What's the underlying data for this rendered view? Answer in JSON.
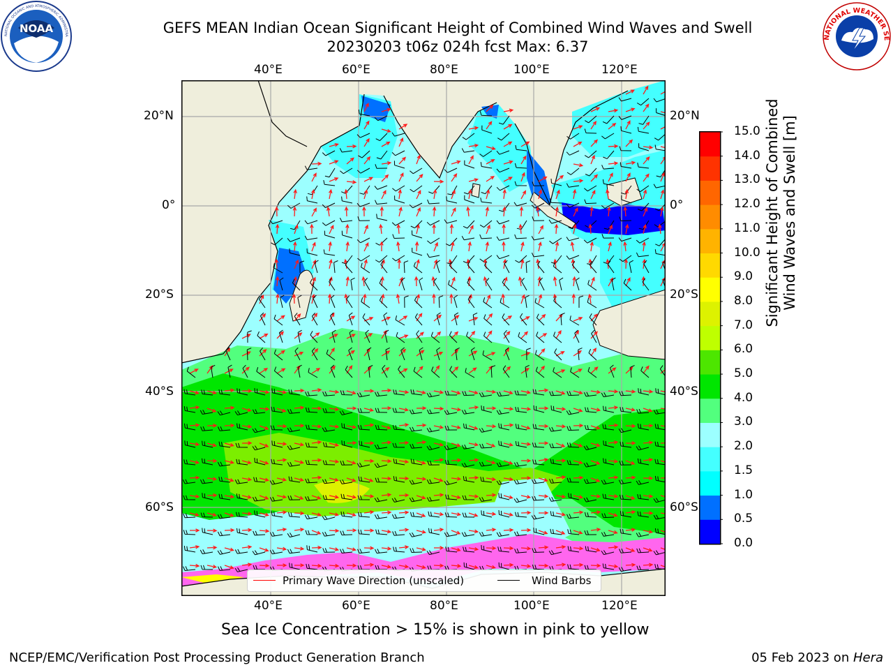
{
  "title": {
    "line1": "GEFS MEAN Indian Ocean Significant Height of Combined Wind Waves and Swell",
    "line2": "20230203 t06z 024h fcst   Max: 6.37"
  },
  "map": {
    "top_lon_ticks": [
      "40°E",
      "60°E",
      "80°E",
      "100°E",
      "120°E"
    ],
    "bottom_lon_ticks": [
      "40°E",
      "60°E",
      "80°E",
      "100°E",
      "120°E"
    ],
    "left_lat_ticks": [
      "20°N",
      "0°",
      "20°S",
      "40°S",
      "60°S"
    ],
    "right_lat_ticks": [
      "20°N",
      "0°",
      "20°S",
      "40°S",
      "60°S"
    ],
    "land_color": "#efeedc",
    "grid": true,
    "bounds": {
      "lon_min": 20,
      "lon_max": 130,
      "lat_min": -70,
      "lat_max": 28
    }
  },
  "legend": {
    "wave_direction_label": "Primary Wave Direction (unscaled)",
    "wind_barbs_label": "Wind Barbs",
    "wave_direction_color": "#ff0000",
    "wind_barbs_color": "#000000",
    "placement": "bottom-center"
  },
  "colorbar": {
    "label_line1": "Significant Height of Combined",
    "label_line2": "Wind Waves and Swell [m]",
    "ticks": [
      "0.0",
      "0.5",
      "1.0",
      "1.5",
      "2.0",
      "3.0",
      "4.0",
      "5.0",
      "6.0",
      "7.0",
      "8.0",
      "9.0",
      "10.0",
      "11.0",
      "12.0",
      "13.0",
      "14.0",
      "15.0"
    ],
    "colors": [
      "#0000ff",
      "#0070ff",
      "#00ffff",
      "#44ffff",
      "#9cffff",
      "#52ff7e",
      "#00e600",
      "#4de600",
      "#bfff00",
      "#ddf200",
      "#ffff00",
      "#ffd900",
      "#ffb300",
      "#ff8c00",
      "#ff6600",
      "#ff3300",
      "#ff0000"
    ]
  },
  "chart_data": {
    "type": "heatmap",
    "variable": "Significant Height of Combined Wind Waves and Swell [m]",
    "max": 6.37,
    "levels": [
      0.0,
      0.5,
      1.0,
      1.5,
      2.0,
      3.0,
      4.0,
      5.0,
      6.0,
      7.0,
      8.0,
      9.0,
      10.0,
      11.0,
      12.0,
      13.0,
      14.0,
      15.0
    ]
  },
  "notes": {
    "sea_ice": "Sea Ice Concentration > 15% is shown in pink to yellow"
  },
  "footer": {
    "left": "NCEP/EMC/Verification Post Processing Product Generation Branch",
    "right_date": "05 Feb 2023 on ",
    "right_host": "Hera"
  },
  "logos": {
    "left": "NOAA",
    "right": "NATIONAL WEATHER SERVICE"
  }
}
